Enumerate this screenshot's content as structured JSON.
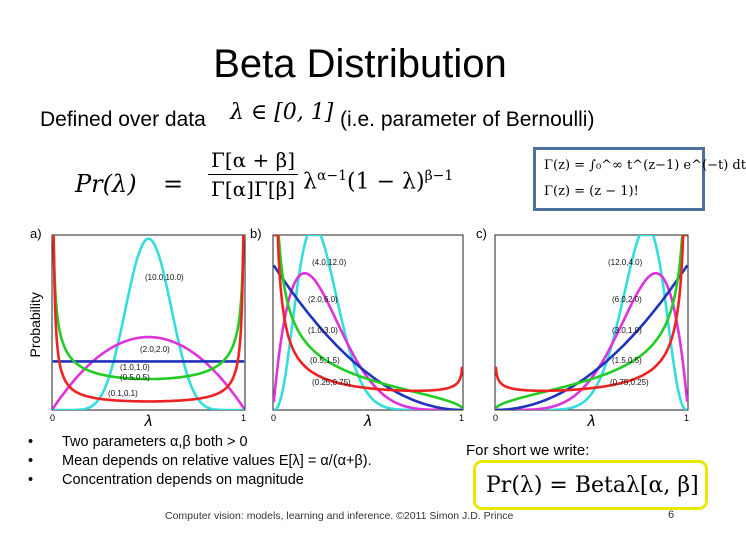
{
  "slide": {
    "title": "Beta Distribution",
    "defined_prefix": "Defined over data",
    "defined_math": "λ ∈ [0, 1]",
    "defined_suffix": "(i.e. parameter of Bernoulli)",
    "formula": {
      "lhs": "Pr(λ)",
      "equals": "=",
      "numerator": "Γ[α + β]",
      "denominator": "Γ[α]Γ[β]",
      "rest_base1": "λ",
      "rest_exp1": "α−1",
      "rest_base2": "(1 − λ)",
      "rest_exp2": "β−1"
    },
    "gamma_box": {
      "line1": "Γ(z) = ∫₀^∞ t^(z−1) e^(−t) dt",
      "line2": "Γ(z) = (z − 1)!"
    },
    "bullets": [
      "Two parameters α,β both > 0",
      "Mean depends on relative values E[λ] = α/(α+β).",
      "Concentration depends on magnitude"
    ],
    "bullet_char": "•",
    "for_short": "For short we write:",
    "beta_formula": "Pr(λ) = Betaλ[α, β]",
    "footer": "Computer vision: models, learning and inference.  ©2011 Simon J.D. Prince",
    "page_number": "6"
  },
  "chart_data": [
    {
      "type": "line",
      "panel": "a)",
      "ylabel": "Probability",
      "xlabel": "λ",
      "xlim": [
        0,
        1
      ],
      "ylim": [
        0,
        3.6
      ],
      "x_ticks": [
        "0",
        "1"
      ],
      "series": [
        {
          "name": "(10.0,10.0)",
          "alpha": 10.0,
          "beta": 10.0,
          "color": "#33dddd"
        },
        {
          "name": "(2.0,2.0)",
          "alpha": 2.0,
          "beta": 2.0,
          "color": "#dd33dd"
        },
        {
          "name": "(1.0,1.0)",
          "alpha": 1.0,
          "beta": 1.0,
          "color": "#2233bb"
        },
        {
          "name": "(0.5,0.5)",
          "alpha": 0.5,
          "beta": 0.5,
          "color": "#22cc22"
        },
        {
          "name": "(0.1,0.1)",
          "alpha": 0.1,
          "beta": 0.1,
          "color": "#ee2222"
        }
      ]
    },
    {
      "type": "line",
      "panel": "b)",
      "xlabel": "λ",
      "xlim": [
        0,
        1
      ],
      "ylim": [
        0,
        3.6
      ],
      "x_ticks": [
        "0",
        "1"
      ],
      "series": [
        {
          "name": "(4.0,12.0)",
          "alpha": 4.0,
          "beta": 12.0,
          "color": "#33dddd"
        },
        {
          "name": "(2.0,6.0)",
          "alpha": 2.0,
          "beta": 6.0,
          "color": "#dd33dd"
        },
        {
          "name": "(1.0,3.0)",
          "alpha": 1.0,
          "beta": 3.0,
          "color": "#2233bb"
        },
        {
          "name": "(0.5,1.5)",
          "alpha": 0.5,
          "beta": 1.5,
          "color": "#22cc22"
        },
        {
          "name": "(0.25,0.75)",
          "alpha": 0.25,
          "beta": 0.75,
          "color": "#ee2222"
        }
      ]
    },
    {
      "type": "line",
      "panel": "c)",
      "xlabel": "λ",
      "xlim": [
        0,
        1
      ],
      "ylim": [
        0,
        3.6
      ],
      "x_ticks": [
        "0",
        "1"
      ],
      "series": [
        {
          "name": "(12.0,4.0)",
          "alpha": 12.0,
          "beta": 4.0,
          "color": "#33dddd"
        },
        {
          "name": "(6.0,2.0)",
          "alpha": 6.0,
          "beta": 2.0,
          "color": "#dd33dd"
        },
        {
          "name": "(3.0,1.0)",
          "alpha": 3.0,
          "beta": 1.0,
          "color": "#2233bb"
        },
        {
          "name": "(1.5,0.5)",
          "alpha": 1.5,
          "beta": 0.5,
          "color": "#22cc22"
        },
        {
          "name": "(0.75,0.25)",
          "alpha": 0.75,
          "beta": 0.25,
          "color": "#ee2222"
        }
      ]
    }
  ]
}
